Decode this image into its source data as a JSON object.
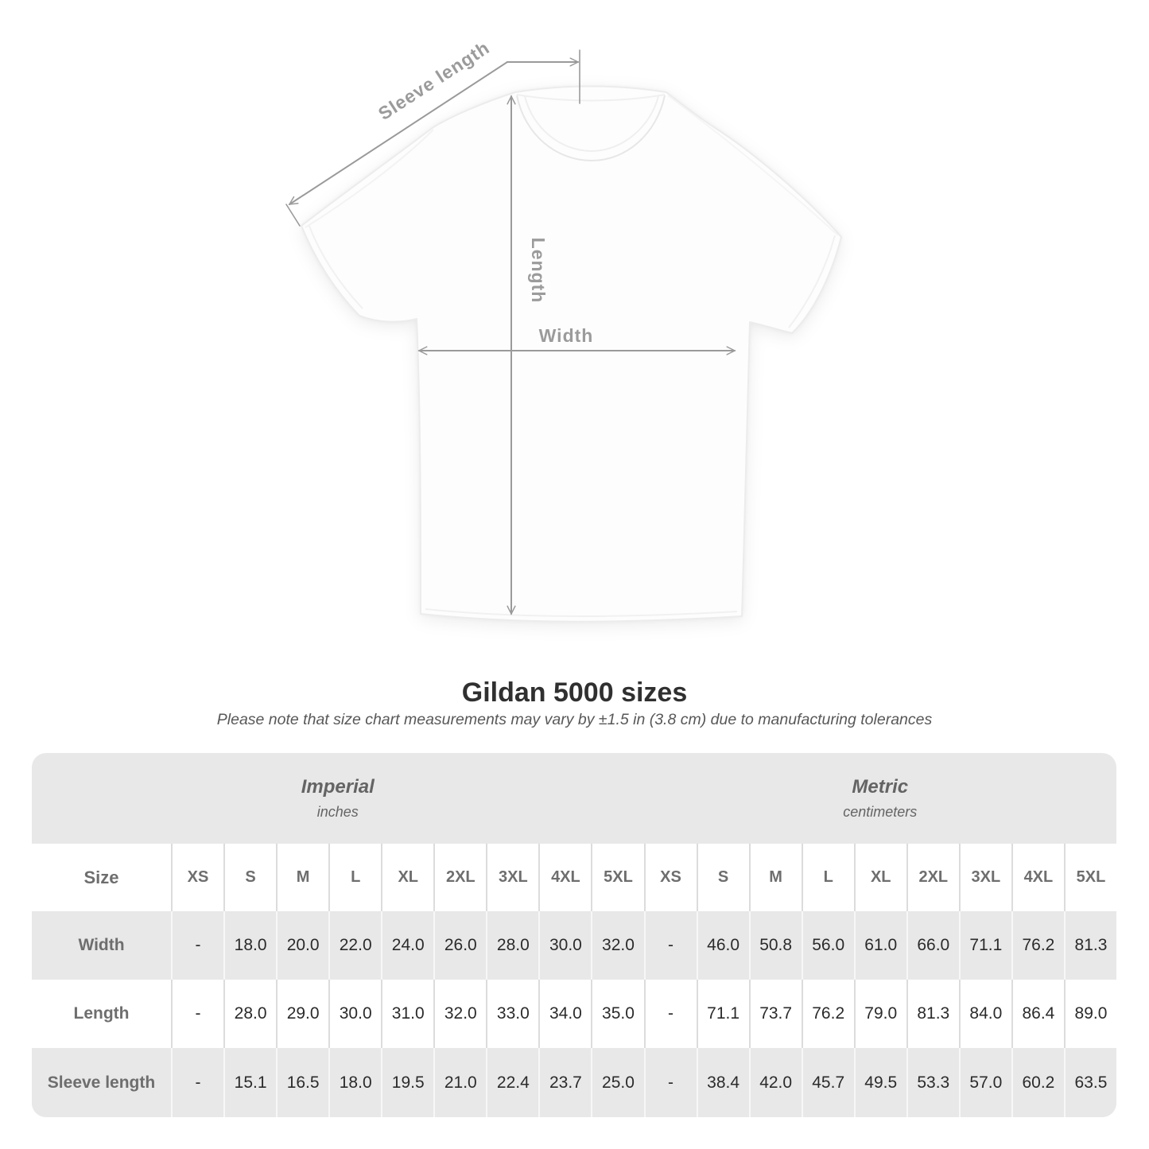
{
  "diagram": {
    "labels": {
      "sleeve_length": "Sleeve length",
      "length": "Length",
      "width": "Width"
    },
    "line_color": "#9a9a9a",
    "label_color": "#9b9b9b"
  },
  "heading": {
    "title": "Gildan 5000 sizes",
    "subtitle": "Please note that size chart measurements may vary by ±1.5 in (3.8 cm) due to manufacturing tolerances"
  },
  "table": {
    "group_headers": [
      {
        "label": "Imperial",
        "sublabel": "inches"
      },
      {
        "label": "Metric",
        "sublabel": "centimeters"
      }
    ],
    "corner_label": "Size",
    "sizes": [
      "XS",
      "S",
      "M",
      "L",
      "XL",
      "2XL",
      "3XL",
      "4XL",
      "5XL"
    ],
    "rows": [
      {
        "label": "Width",
        "imperial": [
          "-",
          "18.0",
          "20.0",
          "22.0",
          "24.0",
          "26.0",
          "28.0",
          "30.0",
          "32.0"
        ],
        "metric": [
          "-",
          "46.0",
          "50.8",
          "56.0",
          "61.0",
          "66.0",
          "71.1",
          "76.2",
          "81.3"
        ]
      },
      {
        "label": "Length",
        "imperial": [
          "-",
          "28.0",
          "29.0",
          "30.0",
          "31.0",
          "32.0",
          "33.0",
          "34.0",
          "35.0"
        ],
        "metric": [
          "-",
          "71.1",
          "73.7",
          "76.2",
          "79.0",
          "81.3",
          "84.0",
          "86.4",
          "89.0"
        ]
      },
      {
        "label": "Sleeve length",
        "imperial": [
          "-",
          "15.1",
          "16.5",
          "18.0",
          "19.5",
          "21.0",
          "22.4",
          "23.7",
          "25.0"
        ],
        "metric": [
          "-",
          "38.4",
          "42.0",
          "45.7",
          "49.5",
          "53.3",
          "57.0",
          "60.2",
          "63.5"
        ]
      }
    ]
  },
  "colors": {
    "table_band": "#e8e8e8",
    "row_gray": "#e8e8e8",
    "row_white": "#ffffff",
    "header_text": "#6e6e6e",
    "value_text": "#2b2b2b",
    "title_text": "#303030"
  }
}
